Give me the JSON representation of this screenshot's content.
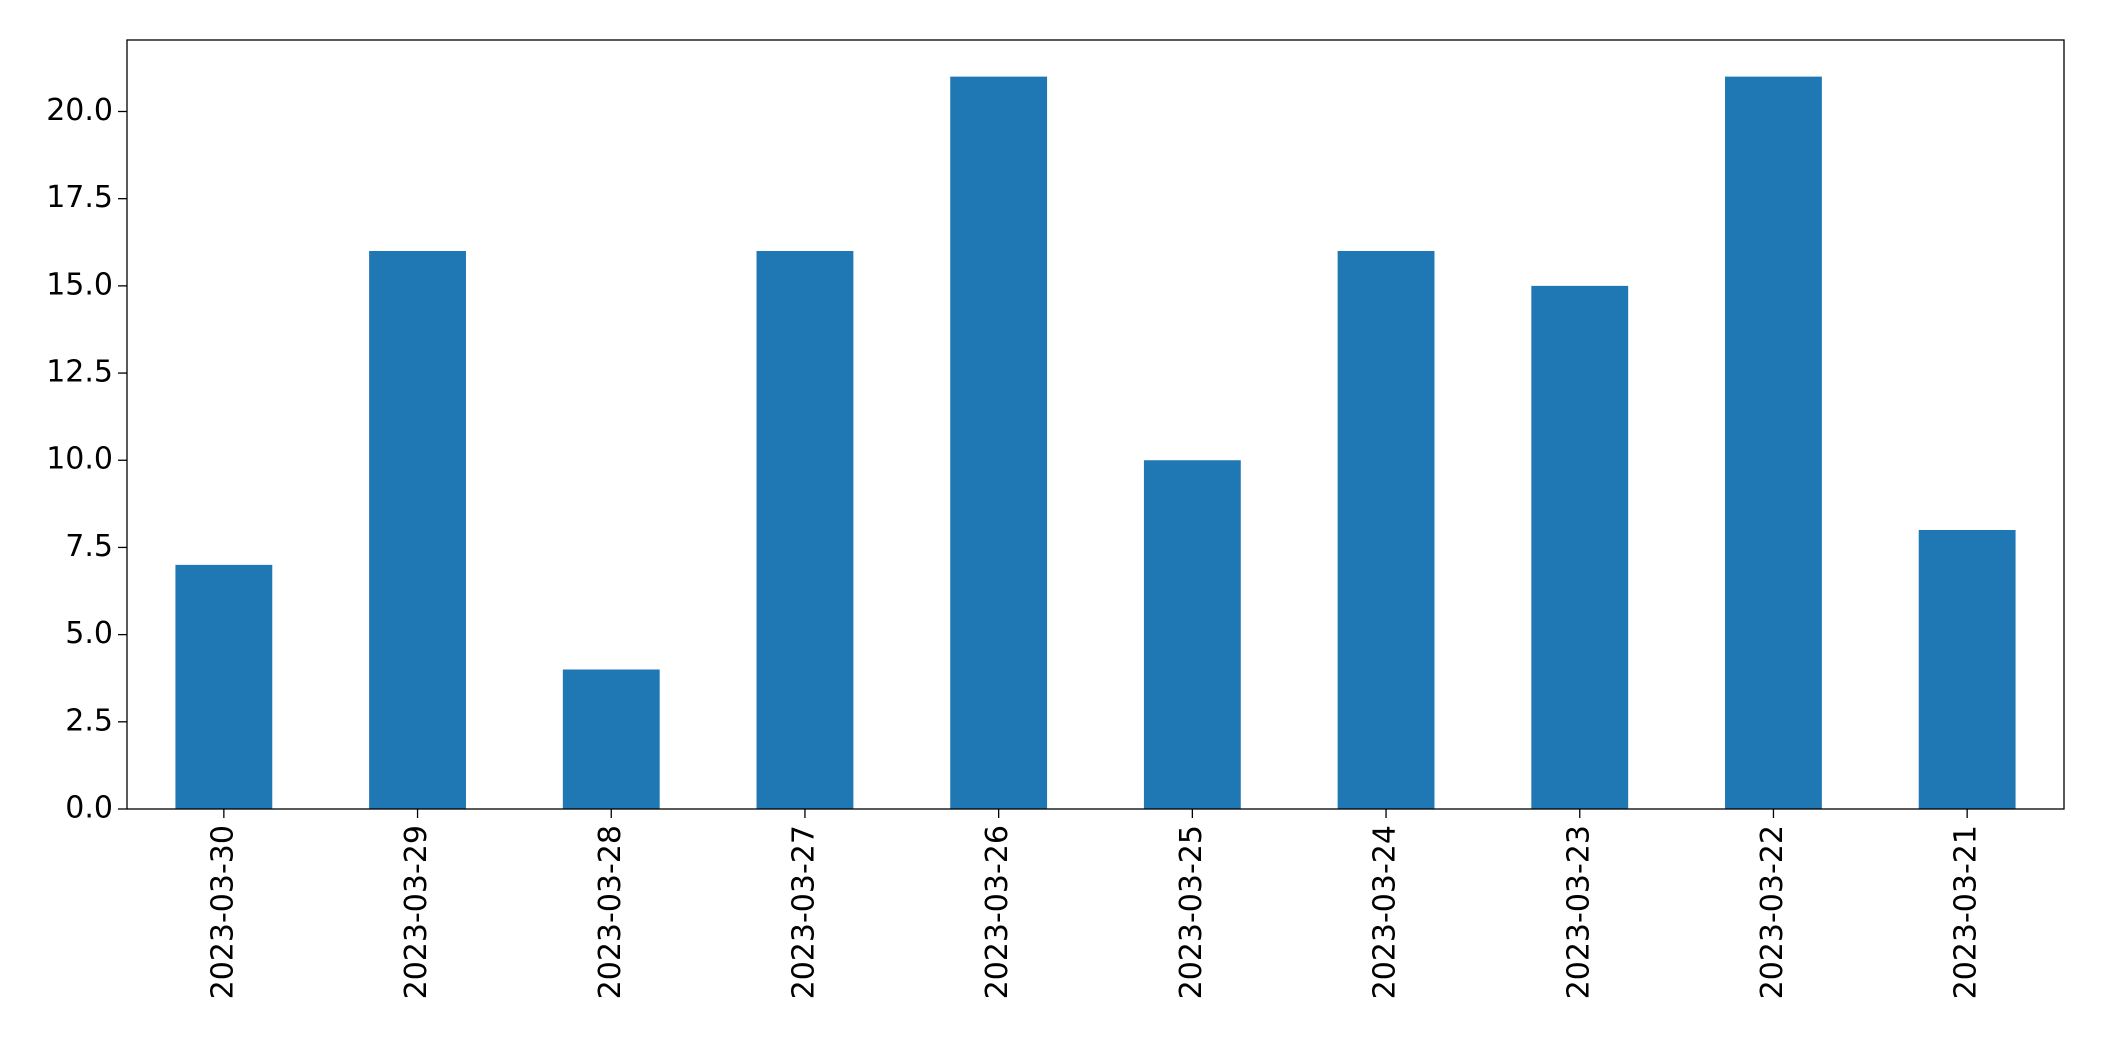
{
  "chart_data": {
    "type": "bar",
    "categories": [
      "2023-03-30",
      "2023-03-29",
      "2023-03-28",
      "2023-03-27",
      "2023-03-26",
      "2023-03-25",
      "2023-03-24",
      "2023-03-23",
      "2023-03-22",
      "2023-03-21"
    ],
    "values": [
      7,
      16,
      4,
      16,
      21,
      10,
      16,
      15,
      21,
      8
    ],
    "color": "#1f77b4",
    "ylim": [
      0,
      22.05
    ],
    "yticks": [
      {
        "value": 0,
        "label": "0.0"
      },
      2.5,
      {
        "value": 5,
        "label": "5.0"
      },
      7.5,
      {
        "value": 10,
        "label": "10.0"
      },
      12.5,
      {
        "value": 15,
        "label": "15.0"
      },
      17.5,
      {
        "value": 20,
        "label": "20.0"
      }
    ],
    "grid": false
  }
}
